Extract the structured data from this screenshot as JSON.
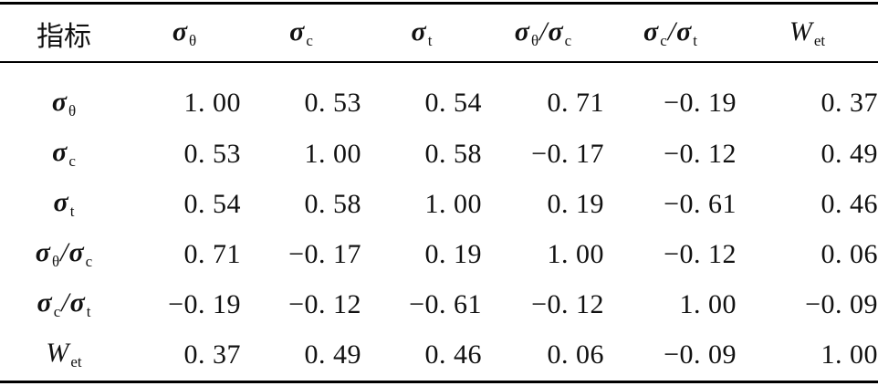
{
  "table": {
    "header_label": "指标",
    "variables": [
      {
        "symbol": "σ",
        "sub": "θ",
        "kind": "sigma"
      },
      {
        "symbol": "σ",
        "sub": "c",
        "kind": "sigma"
      },
      {
        "symbol": "σ",
        "sub": "t",
        "kind": "sigma"
      },
      {
        "symbol": "σ",
        "sub": "θ",
        "slash": "/",
        "symbol2": "σ",
        "sub2": "c",
        "kind": "ratio"
      },
      {
        "symbol": "σ",
        "sub": "c",
        "slash": "/",
        "symbol2": "σ",
        "sub2": "t",
        "kind": "ratio"
      },
      {
        "symbol": "W",
        "sub": "et",
        "kind": "w"
      }
    ],
    "rows": [
      [
        "1. 00",
        "0. 53",
        "0. 54",
        "0. 71",
        "−0. 19",
        "0. 37"
      ],
      [
        "0. 53",
        "1. 00",
        "0. 58",
        "−0. 17",
        "−0. 12",
        "0. 49"
      ],
      [
        "0. 54",
        "0. 58",
        "1. 00",
        "0. 19",
        "−0. 61",
        "0. 46"
      ],
      [
        "0. 71",
        "−0. 17",
        "0. 19",
        "1. 00",
        "−0. 12",
        "0. 06"
      ],
      [
        "−0. 19",
        "−0. 12",
        "−0. 61",
        "−0. 12",
        "1. 00",
        "−0. 09"
      ],
      [
        "0. 37",
        "0. 49",
        "0. 46",
        "0. 06",
        "−0. 09",
        "1. 00"
      ]
    ]
  }
}
